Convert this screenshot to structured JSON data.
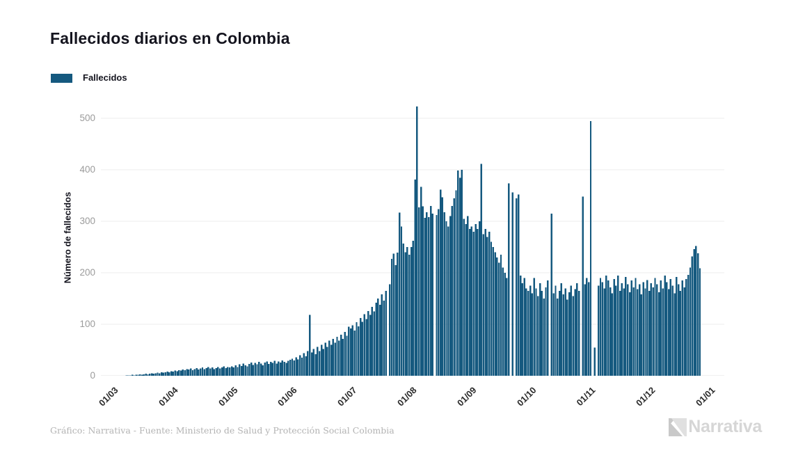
{
  "header": {
    "title": "Fallecidos diarios en Colombia"
  },
  "legend": {
    "label": "Fallecidos",
    "swatch_color": "#15597f"
  },
  "chart_data": {
    "type": "bar",
    "title": "Fallecidos diarios en Colombia",
    "xlabel": "",
    "ylabel": "Número de fallecidos",
    "series_name": "Fallecidos",
    "bar_color": "#15597f",
    "grid": true,
    "legend_position": "top-left",
    "ylim": [
      0,
      530
    ],
    "y_ticks": [
      0,
      100,
      200,
      300,
      400,
      500
    ],
    "x_tick_labels": [
      "01/03",
      "01/04",
      "01/05",
      "01/06",
      "01/07",
      "01/08",
      "01/09",
      "01/10",
      "01/11",
      "01/12",
      "01/01"
    ],
    "x_range_note": "daily values from 01/03 to 27/12",
    "values": [
      0,
      0,
      0,
      0,
      0,
      0,
      0,
      1,
      1,
      1,
      2,
      1,
      2,
      2,
      3,
      2,
      3,
      4,
      3,
      4,
      5,
      4,
      5,
      6,
      5,
      7,
      6,
      7,
      8,
      7,
      9,
      8,
      10,
      9,
      11,
      10,
      12,
      11,
      13,
      12,
      14,
      11,
      13,
      15,
      12,
      14,
      16,
      13,
      15,
      17,
      14,
      16,
      13,
      15,
      17,
      14,
      16,
      18,
      15,
      17,
      16,
      18,
      16,
      20,
      17,
      22,
      19,
      24,
      20,
      18,
      23,
      26,
      21,
      25,
      22,
      27,
      24,
      20,
      26,
      28,
      23,
      27,
      25,
      29,
      24,
      28,
      26,
      30,
      27,
      25,
      29,
      31,
      33,
      30,
      36,
      32,
      40,
      35,
      44,
      38,
      48,
      118,
      45,
      52,
      42,
      56,
      48,
      60,
      52,
      64,
      56,
      68,
      60,
      72,
      64,
      76,
      68,
      80,
      72,
      85,
      78,
      95,
      92,
      98,
      88,
      104,
      96,
      112,
      105,
      120,
      110,
      126,
      118,
      134,
      125,
      142,
      150,
      138,
      158,
      146,
      165,
      0,
      178,
      227,
      237,
      215,
      239,
      317,
      290,
      257,
      240,
      250,
      235,
      250,
      262,
      381,
      523,
      327,
      367,
      329,
      307,
      318,
      308,
      330,
      315,
      0,
      312,
      324,
      362,
      347,
      318,
      300,
      290,
      310,
      330,
      345,
      360,
      399,
      385,
      400,
      305,
      295,
      310,
      285,
      290,
      280,
      295,
      285,
      300,
      412,
      275,
      285,
      270,
      280,
      260,
      250,
      240,
      230,
      220,
      235,
      210,
      200,
      190,
      374,
      0,
      356,
      0,
      345,
      352,
      195,
      180,
      190,
      170,
      165,
      175,
      160,
      190,
      170,
      155,
      180,
      165,
      150,
      172,
      185,
      0,
      315,
      160,
      175,
      150,
      165,
      180,
      158,
      170,
      148,
      162,
      175,
      155,
      168,
      180,
      165,
      0,
      348,
      178,
      190,
      182,
      495,
      0,
      55,
      0,
      175,
      190,
      182,
      170,
      195,
      185,
      172,
      160,
      188,
      175,
      195,
      165,
      180,
      170,
      192,
      178,
      162,
      185,
      172,
      190,
      168,
      178,
      158,
      182,
      170,
      186,
      165,
      180,
      172,
      190,
      178,
      162,
      185,
      170,
      195,
      182,
      168,
      188,
      175,
      160,
      192,
      178,
      165,
      185,
      172,
      188,
      196,
      210,
      232,
      246,
      252,
      238,
      209
    ]
  },
  "footer": {
    "credit": "Gráfico: Narrativa - Fuente: Ministerio de Salud y Protección Social Colombia",
    "logo_text": "Narrativa"
  }
}
